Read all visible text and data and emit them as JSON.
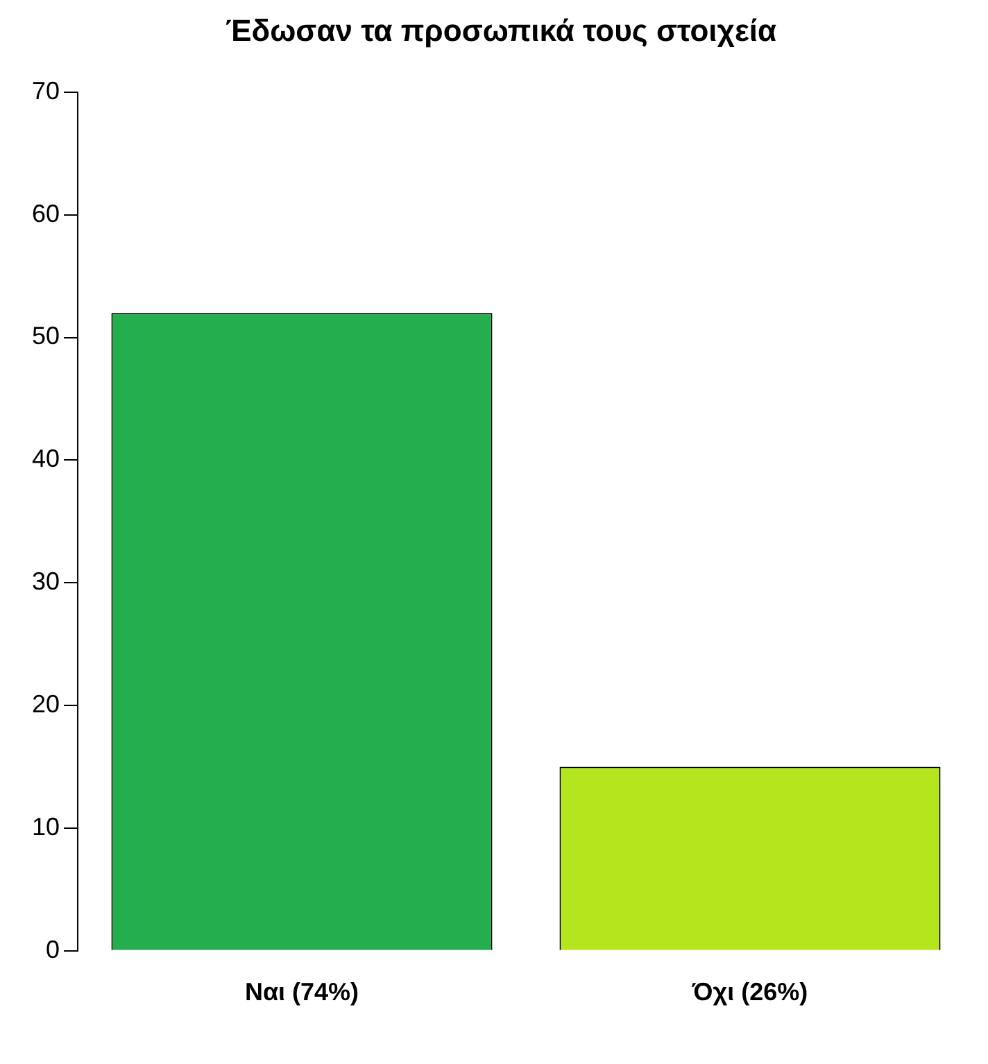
{
  "chart_data": {
    "type": "bar",
    "title": "Έδωσαν τα προσωπικά τους στοιχεία",
    "categories": [
      "Ναι (74%)",
      "Όχι (26%)"
    ],
    "values": [
      52,
      15
    ],
    "colors": [
      "#25ae4e",
      "#b5e61d"
    ],
    "ylim": [
      0,
      70
    ],
    "yticks": [
      0,
      10,
      20,
      30,
      40,
      50,
      60,
      70
    ],
    "grid": false,
    "legend": false
  }
}
